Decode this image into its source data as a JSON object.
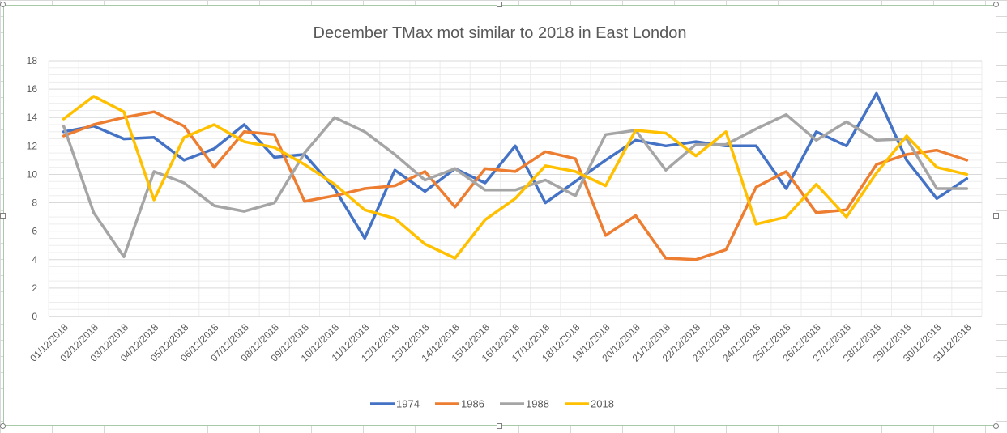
{
  "chart_data": {
    "type": "line",
    "title": "December TMax mot similar to 2018 in East London",
    "xlabel": "",
    "ylabel": "",
    "ylim": [
      0,
      18
    ],
    "yticks": [
      "0",
      "2",
      "4",
      "6",
      "8",
      "10",
      "12",
      "14",
      "16",
      "18"
    ],
    "grid": true,
    "legend_position": "bottom",
    "categories": [
      "01/12/2018",
      "02/12/2018",
      "03/12/2018",
      "04/12/2018",
      "05/12/2018",
      "06/12/2018",
      "07/12/2018",
      "08/12/2018",
      "09/12/2018",
      "10/12/2018",
      "11/12/2018",
      "12/12/2018",
      "13/12/2018",
      "14/12/2018",
      "15/12/2018",
      "16/12/2018",
      "17/12/2018",
      "18/12/2018",
      "19/12/2018",
      "20/12/2018",
      "21/12/2018",
      "22/12/2018",
      "23/12/2018",
      "24/12/2018",
      "25/12/2018",
      "26/12/2018",
      "27/12/2018",
      "28/12/2018",
      "29/12/2018",
      "30/12/2018",
      "31/12/2018"
    ],
    "series": [
      {
        "name": "1974",
        "color": "#4472C4",
        "values": [
          13.0,
          13.4,
          12.5,
          12.6,
          11.0,
          11.8,
          13.5,
          11.2,
          11.4,
          9.0,
          5.5,
          10.3,
          8.8,
          10.4,
          9.4,
          12.0,
          8.0,
          9.5,
          11.0,
          12.4,
          12.0,
          12.3,
          12.0,
          12.0,
          9.0,
          13.0,
          12.0,
          15.7,
          11.0,
          8.3,
          9.7
        ]
      },
      {
        "name": "1986",
        "color": "#ED7D31",
        "values": [
          12.7,
          13.5,
          14.0,
          14.4,
          13.4,
          10.5,
          13.0,
          12.8,
          8.1,
          8.5,
          9.0,
          9.2,
          10.2,
          7.7,
          10.4,
          10.2,
          11.6,
          11.1,
          5.7,
          7.1,
          4.1,
          4.0,
          4.7,
          9.1,
          10.2,
          7.3,
          7.5,
          10.7,
          11.4,
          11.7,
          11.0
        ]
      },
      {
        "name": "1988",
        "color": "#A5A5A5",
        "values": [
          13.4,
          7.3,
          4.2,
          10.2,
          9.4,
          7.8,
          7.4,
          8.0,
          11.5,
          14.0,
          13.0,
          11.4,
          9.6,
          10.4,
          8.9,
          8.9,
          9.6,
          8.5,
          12.8,
          13.1,
          10.3,
          12.1,
          12.1,
          13.2,
          14.2,
          12.4,
          13.7,
          12.4,
          12.5,
          9.0,
          9.0
        ]
      },
      {
        "name": "2018",
        "color": "#FFC000",
        "values": [
          13.9,
          15.5,
          14.4,
          8.2,
          12.6,
          13.5,
          12.3,
          11.9,
          10.7,
          9.3,
          7.5,
          6.9,
          5.1,
          4.1,
          6.8,
          8.3,
          10.6,
          10.2,
          9.2,
          13.1,
          12.9,
          11.3,
          13.0,
          6.5,
          7.0,
          9.3,
          7.0,
          10.1,
          12.7,
          10.5,
          10.0
        ]
      }
    ]
  }
}
